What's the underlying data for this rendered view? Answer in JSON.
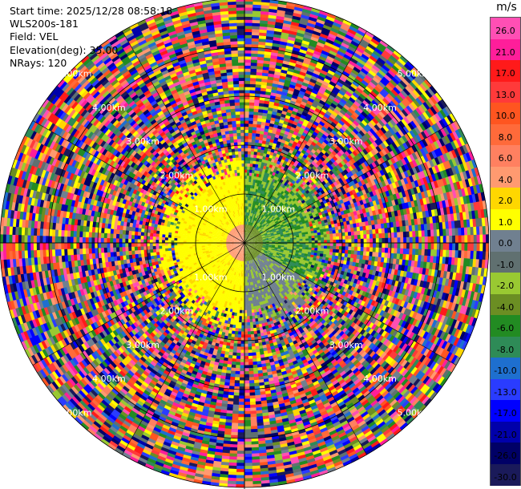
{
  "info": {
    "start_time": "Start time: 2025/12/28 08:58:18",
    "instrument": "WLS200s-181",
    "field": "Field: VEL",
    "elevation": "Elevation(deg): 35.00",
    "nrays": "NRays: 120"
  },
  "colorbar": {
    "unit": "m/s",
    "ticks": [
      "26.0",
      "21.0",
      "17.0",
      "13.0",
      "10.0",
      "8.0",
      "6.0",
      "4.0",
      "2.0",
      "1.0",
      "0.0",
      "-1.0",
      "-2.0",
      "-4.0",
      "-6.0",
      "-8.0",
      "-10.0",
      "-13.0",
      "-17.0",
      "-21.0",
      "-26.0",
      "-30.0"
    ],
    "colors": [
      "#ff4fb4",
      "#ff1e9a",
      "#ff1a1a",
      "#ff3a3a",
      "#ff5520",
      "#ff6a3a",
      "#ff8060",
      "#ff9a70",
      "#ffd700",
      "#ffff00",
      "#708090",
      "#607070",
      "#99c932",
      "#6b8e23",
      "#228b22",
      "#2e8b57",
      "#1e6fcf",
      "#2a3cff",
      "#0000ff",
      "#0000aa",
      "#000066",
      "#1a1a5a"
    ]
  },
  "chart_data": {
    "type": "heatmap",
    "projection": "polar PPI (plan position indicator)",
    "field": "VEL",
    "units": "m/s",
    "elevation_deg": 35.0,
    "n_rays": 120,
    "range_ring_labels_km": [
      "1.00km",
      "2.00km",
      "3.00km",
      "4.00km",
      "5.00km"
    ],
    "range_rings_km": [
      1,
      2,
      3,
      4,
      5
    ],
    "max_range_km": 5.0,
    "scale_limits": [
      -30.0,
      26.0
    ],
    "spokes_deg": [
      0,
      30,
      60,
      90,
      120,
      150,
      180,
      210,
      240,
      270,
      300,
      330
    ],
    "regions": {
      "inner_west_velocity_ms": 1.5,
      "inner_east_velocity_ms": -3.0,
      "outer_noise": "random across full scale"
    }
  }
}
